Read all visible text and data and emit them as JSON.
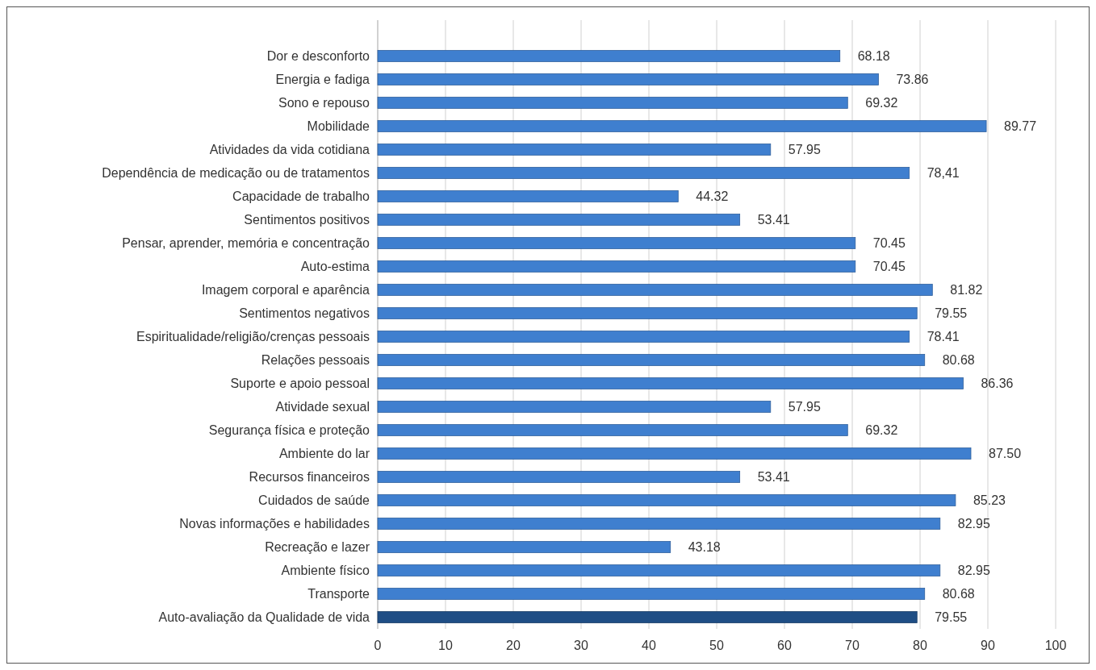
{
  "chart_data": {
    "type": "bar",
    "orientation": "horizontal",
    "categories": [
      "Dor e desconforto",
      "Energia e fadiga",
      "Sono e repouso",
      "Mobilidade",
      "Atividades da vida cotidiana",
      "Dependência de medicação ou de tratamentos",
      "Capacidade de trabalho",
      "Sentimentos positivos",
      "Pensar, aprender, memória e concentração",
      "Auto-estima",
      "Imagem corporal e aparência",
      "Sentimentos negativos",
      "Espiritualidade/religião/crenças pessoais",
      "Relações pessoais",
      "Suporte e apoio pessoal",
      "Atividade sexual",
      "Segurança física e proteção",
      "Ambiente do lar",
      "Recursos financeiros",
      "Cuidados de saúde",
      "Novas informações e habilidades",
      "Recreação e lazer",
      "Ambiente físico",
      "Transporte",
      "Auto-avaliação da Qualidade de vida"
    ],
    "values": [
      68.18,
      73.86,
      69.32,
      89.77,
      57.95,
      78.41,
      44.32,
      53.41,
      70.45,
      70.45,
      81.82,
      79.55,
      78.41,
      80.68,
      86.36,
      57.95,
      69.32,
      87.5,
      53.41,
      85.23,
      82.95,
      43.18,
      82.95,
      80.68,
      79.55
    ],
    "value_labels": [
      "68.18",
      "73.86",
      "69.32",
      "89.77",
      "57.95",
      "78,41",
      "44.32",
      "53.41",
      "70.45",
      "70.45",
      "81.82",
      "79.55",
      "78.41",
      "80.68",
      "86.36",
      "57.95",
      "69.32",
      "87.50",
      "53.41",
      "85.23",
      "82.95",
      "43.18",
      "82.95",
      "80.68",
      "79.55"
    ],
    "colors": [
      "#3f7fcf",
      "#3f7fcf",
      "#3f7fcf",
      "#3f7fcf",
      "#3f7fcf",
      "#3f7fcf",
      "#3f7fcf",
      "#3f7fcf",
      "#3f7fcf",
      "#3f7fcf",
      "#3f7fcf",
      "#3f7fcf",
      "#3f7fcf",
      "#3f7fcf",
      "#3f7fcf",
      "#3f7fcf",
      "#3f7fcf",
      "#3f7fcf",
      "#3f7fcf",
      "#3f7fcf",
      "#3f7fcf",
      "#3f7fcf",
      "#3f7fcf",
      "#3f7fcf",
      "#1f4e85"
    ],
    "xlim": [
      0,
      100
    ],
    "xticks": [
      0,
      10,
      20,
      30,
      40,
      50,
      60,
      70,
      80,
      90,
      100
    ],
    "grid": "x"
  }
}
